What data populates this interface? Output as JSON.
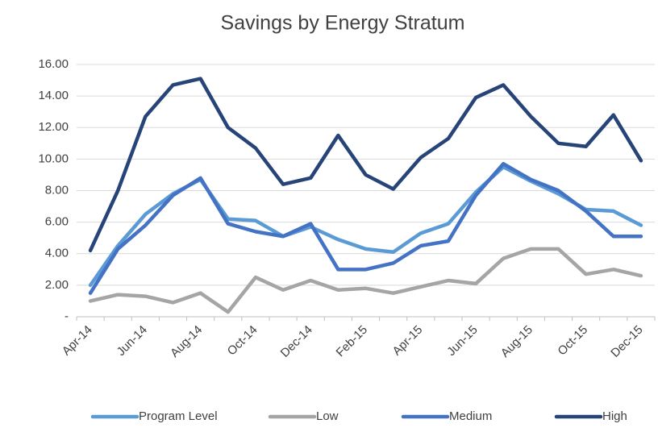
{
  "chart_data": {
    "type": "line",
    "title": "Savings by Energy Stratum",
    "categories": [
      "Apr-14",
      null,
      "Jun-14",
      null,
      "Aug-14",
      null,
      "Oct-14",
      null,
      "Dec-14",
      null,
      "Feb-15",
      null,
      "Apr-15",
      null,
      "Jun-15",
      null,
      "Aug-15",
      null,
      "Oct-15",
      null,
      "Dec-15"
    ],
    "series": [
      {
        "name": "Program Level",
        "color": "#5b9bd5",
        "values": [
          2.0,
          4.5,
          6.5,
          7.8,
          8.7,
          6.2,
          6.1,
          5.1,
          5.7,
          4.9,
          4.3,
          4.1,
          5.3,
          5.9,
          7.9,
          9.5,
          8.6,
          7.8,
          6.8,
          6.7,
          5.8
        ]
      },
      {
        "name": "Low",
        "color": "#a5a5a5",
        "values": [
          1.0,
          1.4,
          1.3,
          0.9,
          1.5,
          0.3,
          2.5,
          1.7,
          2.3,
          1.7,
          1.8,
          1.5,
          1.9,
          2.3,
          2.1,
          3.7,
          4.3,
          4.3,
          2.7,
          3.0,
          2.6
        ]
      },
      {
        "name": "Medium",
        "color": "#4472c4",
        "values": [
          1.5,
          4.3,
          5.8,
          7.7,
          8.8,
          5.9,
          5.4,
          5.1,
          5.9,
          3.0,
          3.0,
          3.4,
          4.5,
          4.8,
          7.7,
          9.7,
          8.7,
          8.0,
          6.7,
          5.1,
          5.1
        ]
      },
      {
        "name": "High",
        "color": "#264478",
        "values": [
          4.2,
          8.0,
          12.7,
          14.7,
          15.1,
          12.0,
          10.7,
          8.4,
          8.8,
          11.5,
          9.0,
          8.1,
          10.1,
          11.3,
          13.9,
          14.7,
          12.7,
          11.0,
          10.8,
          12.8,
          9.9
        ]
      }
    ],
    "ylim": [
      0,
      16
    ],
    "yticks": [
      {
        "value": 0,
        "label": "-"
      },
      {
        "value": 2,
        "label": "2.00"
      },
      {
        "value": 4,
        "label": "4.00"
      },
      {
        "value": 6,
        "label": "6.00"
      },
      {
        "value": 8,
        "label": "8.00"
      },
      {
        "value": 10,
        "label": "10.00"
      },
      {
        "value": 12,
        "label": "12.00"
      },
      {
        "value": 14,
        "label": "14.00"
      },
      {
        "value": 16,
        "label": "16.00"
      }
    ],
    "grid": true,
    "legend": "bottom"
  }
}
